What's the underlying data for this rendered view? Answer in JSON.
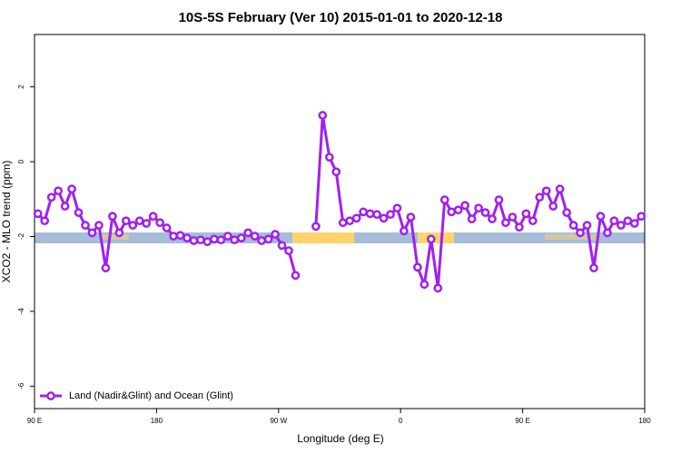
{
  "chart_data": {
    "type": "line",
    "title": "10S-5S February (Ver 10)   2015-01-01 to 2020-12-18",
    "x_label": "Longitude (deg E)",
    "y_label": "XCO2 - MLO trend (ppm)",
    "xlim": [
      90,
      540
    ],
    "xticks": [
      {
        "value": 90,
        "label": "90 E"
      },
      180,
      {
        "value": 270,
        "label": "90 W"
      },
      {
        "value": 360,
        "label": "0"
      },
      {
        "value": 450,
        "label": "90 E"
      },
      {
        "value": 540,
        "label": "180"
      }
    ],
    "ylim": [
      -6.6,
      3.4
    ],
    "yticks": [
      -6,
      -4,
      -2,
      0,
      2
    ],
    "legend": "bottom-left",
    "x": [
      92.5,
      97.5,
      102.5,
      107.5,
      112.5,
      117.5,
      122.5,
      127.5,
      132.5,
      137.5,
      142.5,
      147.5,
      152.5,
      157.5,
      162.5,
      167.5,
      172.5,
      177.5,
      182.5,
      187.5,
      192.5,
      197.5,
      202.5,
      207.5,
      212.5,
      217.5,
      222.5,
      227.5,
      232.5,
      237.5,
      242.5,
      247.5,
      252.5,
      257.5,
      262.5,
      267.5,
      272.5,
      277.5,
      282.5,
      287.5,
      292.5,
      297.5,
      302.5,
      307.5,
      312.5,
      317.5,
      322.5,
      327.5,
      332.5,
      337.5,
      342.5,
      347.5,
      352.5,
      357.5,
      362.5,
      367.5,
      372.5,
      377.5,
      382.5,
      387.5,
      392.5,
      397.5,
      402.5,
      407.5,
      412.5,
      417.5,
      422.5,
      427.5,
      432.5,
      437.5,
      442.5,
      447.5,
      452.5,
      457.5,
      462.5,
      467.5,
      472.5,
      477.5,
      482.5,
      487.5,
      492.5,
      497.5,
      502.5,
      507.5,
      512.5,
      517.5,
      522.5,
      527.5,
      532.5,
      537.5
    ],
    "series": [
      {
        "name": "Land (Nadir&Glint) and Ocean (Glint)",
        "color": "#a020f0",
        "values": [
          -1.39,
          -1.58,
          -0.95,
          -0.78,
          -1.19,
          -0.73,
          -1.36,
          -1.7,
          -1.9,
          -1.7,
          -2.84,
          -1.46,
          -1.9,
          -1.58,
          -1.7,
          -1.58,
          -1.65,
          -1.46,
          -1.63,
          -1.77,
          -1.99,
          -1.97,
          -2.04,
          -2.11,
          -2.09,
          -2.14,
          -2.07,
          -2.09,
          -1.99,
          -2.09,
          -2.04,
          -1.9,
          -1.99,
          -2.11,
          -2.07,
          -1.94,
          -2.24,
          -2.38,
          -3.04,
          null,
          null,
          -1.73,
          1.24,
          0.12,
          -0.27,
          -1.63,
          -1.58,
          -1.51,
          -1.34,
          -1.39,
          -1.41,
          -1.51,
          -1.41,
          -1.24,
          -1.85,
          -1.48,
          -2.82,
          -3.28,
          -2.07,
          -3.38,
          -1.02,
          -1.34,
          -1.29,
          -1.17,
          -1.53,
          -1.24,
          -1.36,
          -1.53,
          -1.02,
          -1.63,
          -1.48,
          -1.75,
          -1.39,
          -1.58,
          -0.95,
          -0.78,
          -1.19,
          -0.73,
          -1.36,
          -1.7,
          -1.9,
          -1.7,
          -2.84,
          -1.46,
          -1.9,
          -1.58,
          -1.7,
          -1.58,
          -1.65,
          -1.46
        ]
      }
    ]
  }
}
